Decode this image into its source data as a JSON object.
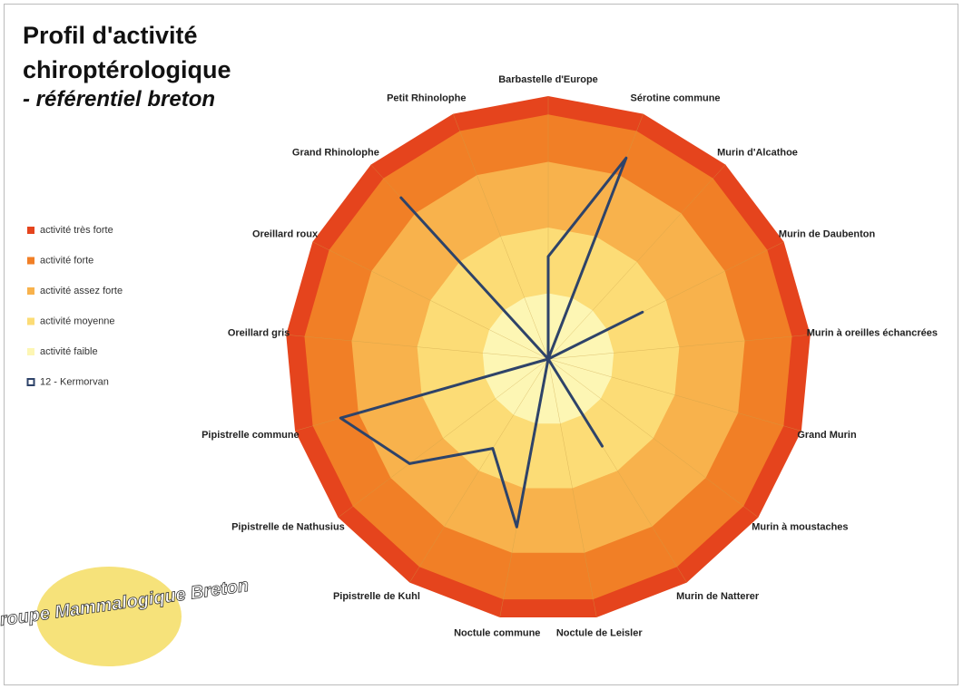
{
  "chart_data": {
    "type": "radar",
    "title": "Profil d'activité chiroptérologique",
    "subtitle": "- référentiel breton",
    "logo_text": "Groupe Mammalogique Breton",
    "categories": [
      "Barbastelle d'Europe",
      "Sérotine commune",
      "Murin d'Alcathoe",
      "Murin de Daubenton",
      "Murin à oreilles échancrées",
      "Grand Murin",
      "Murin à moustaches",
      "Murin de Natterer",
      "Noctule de Leisler",
      "Noctule commune",
      "Pipistrelle de Kuhl",
      "Pipistrelle de Nathusius",
      "Pipistrelle commune",
      "Oreillard gris",
      "Oreillard roux",
      "Grand Rhinolophe",
      "Petit Rhinolophe"
    ],
    "ylim": [
      0,
      100
    ],
    "legend": "left",
    "series": [
      {
        "name": "activité très forte",
        "kind": "area",
        "color": "#e5441d",
        "values": [
          100,
          100,
          100,
          100,
          100,
          100,
          100,
          100,
          100,
          100,
          100,
          100,
          100,
          100,
          100,
          100,
          100
        ]
      },
      {
        "name": "activité forte",
        "kind": "area",
        "color": "#f17f26",
        "values": [
          93,
          93,
          93,
          93,
          93,
          93,
          93,
          93,
          93,
          93,
          93,
          93,
          93,
          93,
          93,
          93,
          93
        ]
      },
      {
        "name": "activité assez forte",
        "kind": "area",
        "color": "#f8b24c",
        "values": [
          75,
          75,
          75,
          75,
          75,
          75,
          75,
          75,
          75,
          75,
          75,
          75,
          75,
          75,
          75,
          75,
          75
        ]
      },
      {
        "name": "activité moyenne",
        "kind": "area",
        "color": "#fcdc76",
        "values": [
          50,
          50,
          50,
          50,
          50,
          50,
          50,
          50,
          50,
          50,
          50,
          50,
          50,
          50,
          50,
          50,
          50
        ]
      },
      {
        "name": "activité faible",
        "kind": "area",
        "color": "#fdf6b4",
        "values": [
          25,
          25,
          25,
          25,
          25,
          25,
          25,
          25,
          25,
          25,
          25,
          25,
          25,
          25,
          25,
          25,
          25
        ]
      },
      {
        "name": "12 - Kermorvan",
        "kind": "line",
        "color": "#2e4369",
        "values": [
          39,
          82,
          0,
          40,
          0,
          0,
          0,
          39,
          0,
          65,
          40,
          66,
          82,
          0,
          0,
          83,
          0
        ]
      }
    ]
  }
}
